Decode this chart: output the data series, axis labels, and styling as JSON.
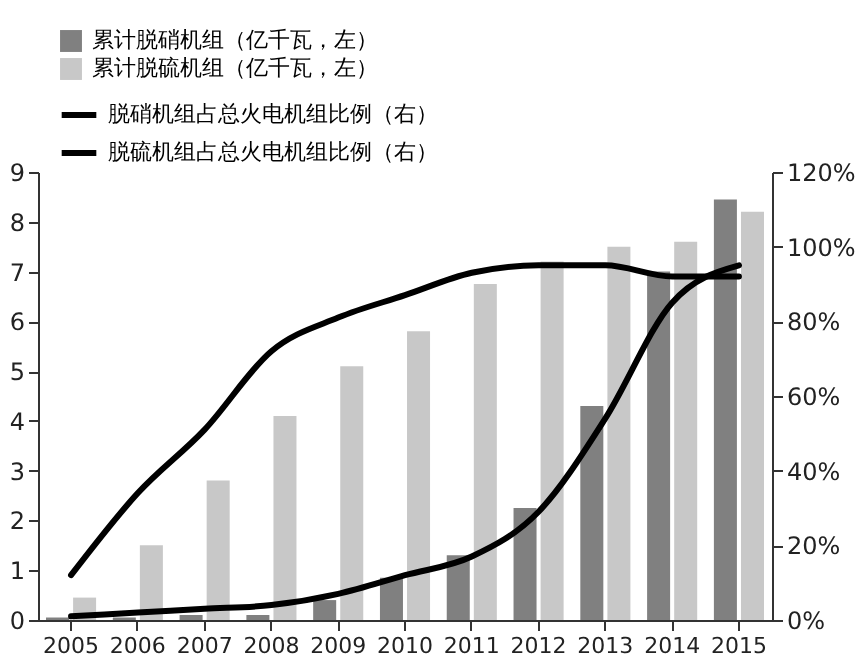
{
  "chart_data": {
    "type": "bar",
    "categories": [
      "2005",
      "2006",
      "2007",
      "2008",
      "2009",
      "2010",
      "2011",
      "2012",
      "2013",
      "2014",
      "2015"
    ],
    "series": [
      {
        "name": "累计脱硝机组（亿千瓦，左）",
        "color": "#808080",
        "values": [
          0.05,
          0.05,
          0.1,
          0.1,
          0.4,
          0.85,
          1.3,
          2.25,
          4.3,
          7.0,
          8.45
        ]
      },
      {
        "name": "累计脱硫机组（亿千瓦，左）",
        "color": "#c8c8c8",
        "values": [
          0.45,
          1.5,
          2.8,
          4.1,
          5.1,
          5.8,
          6.75,
          7.2,
          7.5,
          7.6,
          8.2
        ]
      },
      {
        "name": "脱硝机组占总火电机组比例（右）",
        "type": "line",
        "axis": "y2",
        "color": "#000000",
        "values": [
          1,
          2,
          3,
          4,
          7,
          12,
          17,
          29,
          54,
          85,
          95
        ]
      },
      {
        "name": "脱硫机组占总火电机组比例（右）",
        "type": "line",
        "axis": "y2",
        "color": "#000000",
        "values": [
          12,
          34,
          51,
          72,
          81,
          87,
          93,
          95,
          95,
          92,
          92
        ]
      }
    ],
    "ylim": [
      0,
      9
    ],
    "yticks": [
      0,
      1,
      2,
      3,
      4,
      5,
      6,
      7,
      8,
      9
    ],
    "y2lim": [
      0,
      120
    ],
    "y2ticks": [
      {
        "value": 0,
        "label": "0%"
      },
      {
        "value": 20,
        "label": "20%"
      },
      {
        "value": 40,
        "label": "40%"
      },
      {
        "value": 60,
        "label": "60%"
      },
      {
        "value": 80,
        "label": "80%"
      },
      {
        "value": 100,
        "label": "100%"
      },
      {
        "value": 120,
        "label": "120%"
      }
    ],
    "legend": "top left",
    "grid": false
  }
}
